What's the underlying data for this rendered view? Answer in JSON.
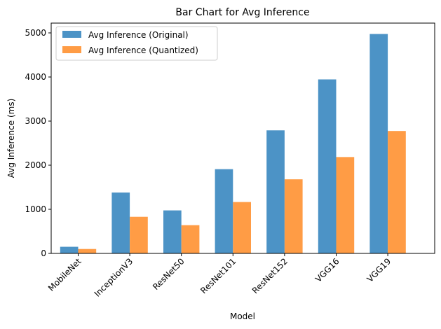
{
  "chart_data": {
    "type": "bar",
    "title": "Bar Chart for Avg Inference",
    "xlabel": "Model",
    "ylabel": "Avg Inference (ms)",
    "categories": [
      "MobileNet",
      "InceptionV3",
      "ResNet50",
      "ResNet101",
      "ResNet152",
      "VGG16",
      "VGG19"
    ],
    "series": [
      {
        "name": "Avg Inference (Original)",
        "color": "#4c93c6",
        "values": [
          150,
          1380,
          975,
          1910,
          2790,
          3945,
          4975
        ]
      },
      {
        "name": "Avg Inference (Quantized)",
        "color": "#ff9c45",
        "values": [
          100,
          830,
          640,
          1165,
          1680,
          2185,
          2775
        ]
      }
    ],
    "ylim": [
      0,
      5000
    ],
    "yticks": [
      0,
      1000,
      2000,
      3000,
      4000,
      5000
    ],
    "grid": false,
    "legend_position": "top-left"
  }
}
